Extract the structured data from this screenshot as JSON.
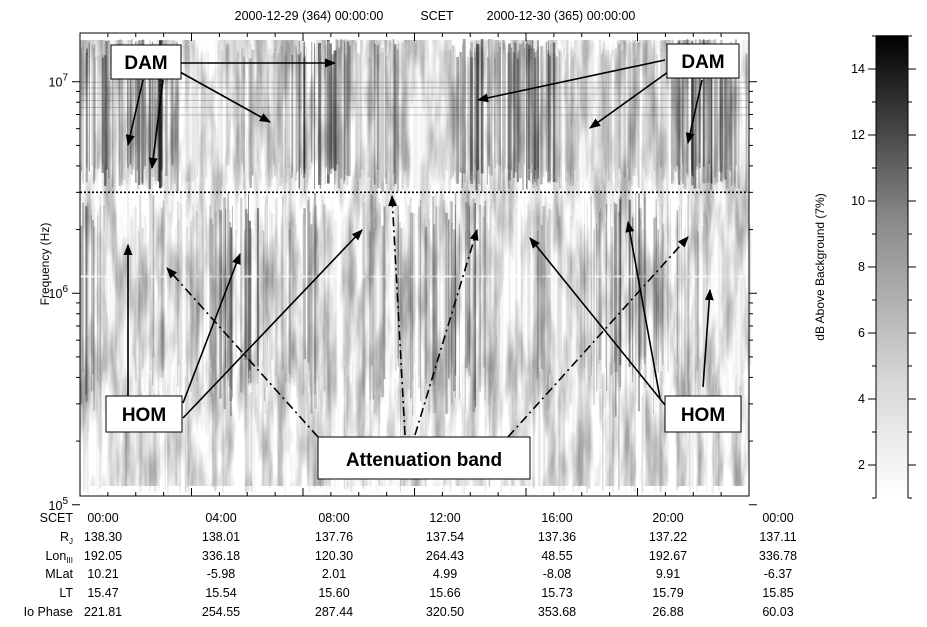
{
  "chart_data": {
    "type": "heatmap",
    "top_axis": {
      "labels": [
        "2000-12-29 (364) 00:00:00",
        "SCET",
        "2000-12-30 (365) 00:00:00"
      ]
    },
    "ylabel": "Frequency (Hz)",
    "y_scale": "log",
    "ylim": [
      110000,
      17000000
    ],
    "y_ticks": [
      {
        "value": 100000,
        "base": "10",
        "exp": "5"
      },
      {
        "value": 1000000,
        "base": "10",
        "exp": "6"
      },
      {
        "value": 10000000,
        "base": "10",
        "exp": "7"
      }
    ],
    "x_hours_range": [
      0,
      24
    ],
    "attenuation_line_freq": 3000000,
    "colorbar": {
      "label": "dB Above Background (7%)",
      "range": [
        1,
        15
      ],
      "ticks": [
        "2",
        "4",
        "6",
        "8",
        "10",
        "12",
        "14"
      ],
      "tick_values": [
        2,
        4,
        6,
        8,
        10,
        12,
        14
      ]
    },
    "ephemeris": {
      "rows": [
        {
          "label": "SCET",
          "sub": "",
          "values": [
            "00:00",
            "04:00",
            "08:00",
            "12:00",
            "16:00",
            "20:00",
            "00:00"
          ]
        },
        {
          "label": "R",
          "sub": "J",
          "values": [
            "138.30",
            "138.01",
            "137.76",
            "137.54",
            "137.36",
            "137.22",
            "137.11"
          ]
        },
        {
          "label": "Lon",
          "sub": "III",
          "values": [
            "192.05",
            "336.18",
            "120.30",
            "264.43",
            "48.55",
            "192.67",
            "336.78"
          ]
        },
        {
          "label": "MLat",
          "sub": "",
          "values": [
            "10.21",
            "-5.98",
            "2.01",
            "4.99",
            "-8.08",
            "9.91",
            "-6.37"
          ]
        },
        {
          "label": "LT",
          "sub": "",
          "values": [
            "15.47",
            "15.54",
            "15.60",
            "15.66",
            "15.73",
            "15.79",
            "15.85"
          ]
        },
        {
          "label": "Io Phase",
          "sub": "",
          "values": [
            "221.81",
            "254.55",
            "287.44",
            "320.50",
            "353.68",
            "26.88",
            "60.03"
          ]
        }
      ]
    },
    "annotations": [
      {
        "label": "DAM"
      },
      {
        "label": "DAM"
      },
      {
        "label": "HOM"
      },
      {
        "label": "HOM"
      },
      {
        "label": "Attenuation band"
      }
    ]
  }
}
